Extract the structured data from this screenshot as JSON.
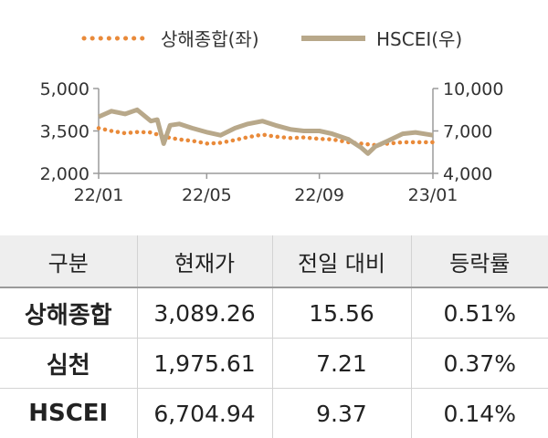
{
  "chart_data": {
    "type": "line",
    "title": "",
    "xlabel": "",
    "ylabel": "",
    "x_tick_labels": [
      "22/01",
      "22/05",
      "22/09",
      "23/01"
    ],
    "left_axis": {
      "ticks": [
        "5,000",
        "3,500",
        "2,000"
      ],
      "ylim": [
        2000,
        5000
      ]
    },
    "right_axis": {
      "ticks": [
        "10,000",
        "7,000",
        "4,000"
      ],
      "ylim": [
        4000,
        10000
      ]
    },
    "legend_position": "top-center",
    "series": [
      {
        "name": "상해종합(좌)",
        "axis": "left",
        "style": "dotted",
        "color": "#e98a3a",
        "x": [
          "22/01/03",
          "22/01/17",
          "22/02/01",
          "22/02/14",
          "22/03/01",
          "22/03/15",
          "22/04/01",
          "22/04/15",
          "22/05/02",
          "22/05/16",
          "22/06/01",
          "22/06/15",
          "22/07/01",
          "22/07/15",
          "22/08/01",
          "22/08/15",
          "22/09/01",
          "22/09/15",
          "22/10/03",
          "22/10/17",
          "22/11/01",
          "22/11/15",
          "22/12/01",
          "22/12/15",
          "23/01/03"
        ],
        "values": [
          3600,
          3500,
          3420,
          3460,
          3450,
          3300,
          3200,
          3150,
          3050,
          3080,
          3180,
          3280,
          3370,
          3300,
          3250,
          3270,
          3220,
          3200,
          3100,
          3050,
          3000,
          3050,
          3100,
          3100,
          3100
        ]
      },
      {
        "name": "HSCEI(우)",
        "axis": "right",
        "style": "solid",
        "color": "#b8a88a",
        "x": [
          "22/01/03",
          "22/01/17",
          "22/02/01",
          "22/02/14",
          "22/03/01",
          "22/03/08",
          "22/03/15",
          "22/03/22",
          "22/04/01",
          "22/04/15",
          "22/05/02",
          "22/05/16",
          "22/06/01",
          "22/06/15",
          "22/07/01",
          "22/07/15",
          "22/08/01",
          "22/08/15",
          "22/09/01",
          "22/09/15",
          "22/10/03",
          "22/10/17",
          "22/10/24",
          "22/11/01",
          "22/11/15",
          "22/12/01",
          "22/12/15",
          "23/01/03"
        ],
        "values": [
          8000,
          8400,
          8200,
          8500,
          7700,
          7800,
          6100,
          7400,
          7500,
          7200,
          6900,
          6700,
          7200,
          7500,
          7700,
          7400,
          7100,
          7000,
          7000,
          6800,
          6400,
          5800,
          5400,
          5900,
          6300,
          6800,
          6900,
          6700
        ]
      }
    ]
  },
  "table": {
    "headers": [
      "구분",
      "현재가",
      "전일 대비",
      "등락률"
    ],
    "rows": [
      [
        "상해종합",
        "3,089.26",
        "15.56",
        "0.51%"
      ],
      [
        "심천",
        "1,975.61",
        "7.21",
        "0.37%"
      ],
      [
        "HSCEI",
        "6,704.94",
        "9.37",
        "0.14%"
      ]
    ]
  }
}
